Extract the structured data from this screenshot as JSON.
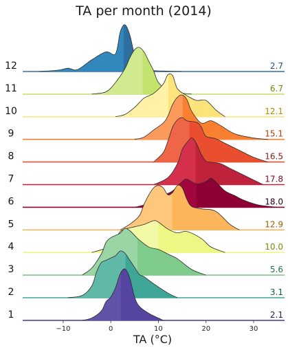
{
  "chart_data": {
    "type": "ridgeline",
    "title": "TA per month (2014)",
    "xlabel": "TA (°C)",
    "xlim": [
      -18.5,
      36.5
    ],
    "xticks": [
      -10,
      0,
      10,
      20,
      30
    ],
    "grid": false,
    "series": [
      {
        "label": "12",
        "mean": "2.7",
        "mean_value": 2.7,
        "color": "#3288bd",
        "dark": "#2f6ea1",
        "text_color": "#234f7a",
        "density_x": [
          -15,
          -11,
          -9,
          -7,
          -4,
          -1,
          1,
          2,
          3,
          4,
          5,
          6,
          7,
          9,
          11,
          15
        ],
        "density_y": [
          0,
          0.03,
          0.07,
          0.04,
          0.25,
          0.42,
          0.38,
          0.85,
          1.0,
          0.78,
          0.35,
          0.12,
          0.05,
          0.02,
          0.01,
          0
        ]
      },
      {
        "label": "11",
        "mean": "6.7",
        "mean_value": 6.7,
        "color": "#d1ea8f",
        "dark": "#c2e46f",
        "text_color": "#6b8a00",
        "density_x": [
          -4,
          -1,
          1,
          3,
          4,
          5,
          6,
          7,
          8,
          9,
          10,
          12,
          14,
          17
        ],
        "density_y": [
          0,
          0.05,
          0.25,
          0.55,
          0.78,
          0.95,
          1.0,
          0.9,
          0.7,
          0.5,
          0.25,
          0.08,
          0.03,
          0
        ]
      },
      {
        "label": "10",
        "mean": "12.1",
        "mean_value": 12.1,
        "color": "#fff1a6",
        "dark": "#fde37c",
        "text_color": "#b08a00",
        "density_x": [
          1,
          3,
          5,
          7,
          9,
          11,
          12,
          13,
          14,
          16,
          18,
          20,
          22,
          24
        ],
        "density_y": [
          0,
          0.05,
          0.2,
          0.4,
          0.5,
          0.7,
          0.9,
          0.88,
          0.6,
          0.45,
          0.35,
          0.35,
          0.15,
          0
        ]
      },
      {
        "label": "9",
        "mean": "15.1",
        "mean_value": 15.1,
        "color": "#fc9a5b",
        "dark": "#f98030",
        "text_color": "#b83a00",
        "density_x": [
          5,
          7,
          9,
          11,
          12,
          13,
          14,
          15,
          16,
          17,
          19,
          21,
          23,
          26,
          30,
          33
        ],
        "density_y": [
          0,
          0.05,
          0.2,
          0.35,
          0.5,
          0.75,
          0.9,
          0.95,
          0.85,
          0.6,
          0.35,
          0.4,
          0.3,
          0.12,
          0.03,
          0
        ]
      },
      {
        "label": "8",
        "mean": "16.5",
        "mean_value": 16.5,
        "color": "#ee6647",
        "dark": "#e94f2e",
        "text_color": "#8b1a10",
        "density_x": [
          9,
          11,
          12,
          13,
          14,
          15,
          16,
          18,
          19,
          20,
          22,
          24,
          27,
          30,
          33
        ],
        "density_y": [
          0,
          0.2,
          0.45,
          0.75,
          0.9,
          0.95,
          0.88,
          0.85,
          0.75,
          0.55,
          0.5,
          0.4,
          0.25,
          0.1,
          0
        ]
      },
      {
        "label": "7",
        "mean": "17.8",
        "mean_value": 17.8,
        "color": "#d42f4b",
        "dark": "#c0223c",
        "text_color": "#7a0a1c",
        "density_x": [
          9,
          12,
          14,
          15,
          16,
          17,
          18,
          19,
          20,
          21,
          23,
          25,
          27,
          30,
          32
        ],
        "density_y": [
          0,
          0.15,
          0.45,
          0.75,
          0.9,
          1.0,
          0.88,
          0.65,
          0.5,
          0.48,
          0.45,
          0.35,
          0.25,
          0.1,
          0
        ]
      },
      {
        "label": "6",
        "mean": "18.0",
        "mean_value": 18.0,
        "color": "#a1063f",
        "dark": "#8c0034",
        "text_color": "#2a0010",
        "density_x": [
          5,
          7,
          9,
          11,
          13,
          15,
          16,
          18,
          20,
          21,
          22,
          24,
          26,
          28,
          31,
          35
        ],
        "density_y": [
          0,
          0.05,
          0.12,
          0.25,
          0.35,
          0.55,
          0.6,
          0.5,
          0.55,
          0.62,
          0.55,
          0.35,
          0.25,
          0.15,
          0.05,
          0
        ]
      },
      {
        "label": "5",
        "mean": "12.9",
        "mean_value": 12.9,
        "color": "#fec77b",
        "dark": "#fdb55c",
        "text_color": "#a05a00",
        "density_x": [
          2,
          4,
          6,
          7,
          8,
          9,
          10,
          11,
          12,
          13,
          14,
          15,
          16,
          17,
          19,
          22,
          25,
          27
        ],
        "density_y": [
          0,
          0.12,
          0.3,
          0.55,
          0.75,
          0.9,
          0.95,
          0.9,
          0.75,
          0.8,
          0.95,
          0.9,
          0.65,
          0.5,
          0.45,
          0.4,
          0.12,
          0
        ]
      },
      {
        "label": "4",
        "mean": "10.0",
        "mean_value": 10.0,
        "color": "#f2f9a6",
        "dark": "#edf784",
        "text_color": "#7a8a00",
        "density_x": [
          -4,
          -1,
          1,
          2,
          3,
          5,
          7,
          9,
          10,
          12,
          14,
          16,
          19,
          21,
          24
        ],
        "density_y": [
          0,
          0.1,
          0.3,
          0.45,
          0.5,
          0.55,
          0.6,
          0.68,
          0.65,
          0.5,
          0.42,
          0.45,
          0.3,
          0.12,
          0
        ]
      },
      {
        "label": "3",
        "mean": "5.6",
        "mean_value": 5.6,
        "color": "#99d5a5",
        "dark": "#7fcb8c",
        "text_color": "#1f7040",
        "density_x": [
          -6,
          -4,
          -2,
          -1,
          0,
          1,
          2,
          3,
          4,
          5,
          6,
          8,
          10,
          12,
          14,
          17,
          20
        ],
        "density_y": [
          0,
          0.15,
          0.45,
          0.7,
          0.8,
          0.85,
          0.9,
          1.0,
          0.95,
          0.85,
          0.75,
          0.6,
          0.55,
          0.45,
          0.35,
          0.12,
          0
        ]
      },
      {
        "label": "2",
        "mean": "3.1",
        "mean_value": 3.1,
        "color": "#60b9a6",
        "dark": "#3fa596",
        "text_color": "#115a4f",
        "density_x": [
          -9,
          -6,
          -4,
          -3,
          -2,
          -1,
          0,
          1,
          2,
          3,
          4,
          5,
          6,
          7,
          9,
          12,
          14
        ],
        "density_y": [
          0,
          0.05,
          0.25,
          0.55,
          0.75,
          0.8,
          0.85,
          0.9,
          1.0,
          0.95,
          0.8,
          0.65,
          0.5,
          0.45,
          0.3,
          0.1,
          0
        ]
      },
      {
        "label": "1",
        "mean": "2.1",
        "mean_value": 2.1,
        "color": "#6154a8",
        "dark": "#5545a0",
        "text_color": "#1f1a4f",
        "density_x": [
          -6,
          -4,
          -2,
          -1,
          0,
          1,
          2,
          3,
          4,
          5,
          6,
          8,
          10,
          11
        ],
        "density_y": [
          0,
          0.05,
          0.2,
          0.4,
          0.5,
          0.7,
          1.0,
          1.1,
          0.9,
          0.5,
          0.3,
          0.15,
          0.05,
          0
        ]
      }
    ]
  }
}
